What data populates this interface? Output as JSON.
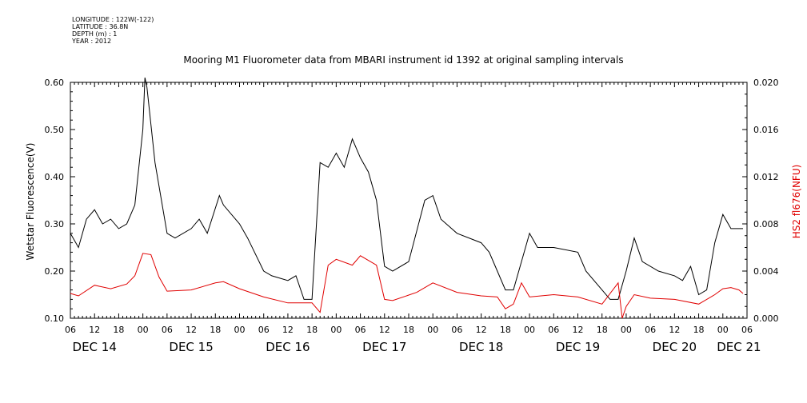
{
  "meta": {
    "lines": [
      "LONGITUDE : 122W(-122)",
      "LATITUDE : 36.8N",
      "DEPTH (m) : 1",
      "YEAR : 2012"
    ]
  },
  "colors": {
    "left_series": "#000000",
    "right_series": "#e00000",
    "right_axis_label": "#e00000"
  },
  "chart_data": {
    "type": "line",
    "title": "Mooring M1 Fluorometer data from MBARI instrument id 1392 at original sampling intervals",
    "ylabel_left": "Wetstar Fluorescence(V)",
    "ylabel_right": "HS2 fl676(NFU)",
    "x_range": [
      "2012-12-14T06:00",
      "2012-12-21T06:00"
    ],
    "ylim_left": [
      0.1,
      0.6
    ],
    "yticks_left": [
      "0.10",
      "0.20",
      "0.30",
      "0.40",
      "0.50",
      "0.60"
    ],
    "ylim_right": [
      0.0,
      0.02
    ],
    "yticks_right": [
      "0.000",
      "0.004",
      "0.008",
      "0.012",
      "0.016",
      "0.020"
    ],
    "x_hour_ticks": [
      "06",
      "12",
      "18",
      "00",
      "06",
      "12",
      "18",
      "00",
      "06",
      "12",
      "18",
      "00",
      "06",
      "12",
      "18",
      "00",
      "06",
      "12",
      "18",
      "00",
      "06",
      "12",
      "18",
      "00",
      "06",
      "12",
      "18",
      "00",
      "06"
    ],
    "x_day_labels": [
      "DEC 14",
      "DEC 15",
      "DEC 16",
      "DEC 17",
      "DEC 18",
      "DEC 19",
      "DEC 20",
      "DEC 21"
    ],
    "series": [
      {
        "name": "Wetstar Fluorescence(V)",
        "axis": "left",
        "points": [
          [
            "2012-12-14T06:00",
            0.28
          ],
          [
            "2012-12-14T08:00",
            0.25
          ],
          [
            "2012-12-14T10:00",
            0.31
          ],
          [
            "2012-12-14T12:00",
            0.33
          ],
          [
            "2012-12-14T14:00",
            0.3
          ],
          [
            "2012-12-14T16:00",
            0.31
          ],
          [
            "2012-12-14T18:00",
            0.29
          ],
          [
            "2012-12-14T20:00",
            0.3
          ],
          [
            "2012-12-14T22:00",
            0.34
          ],
          [
            "2012-12-15T00:00",
            0.5
          ],
          [
            "2012-12-15T00:30",
            0.61
          ],
          [
            "2012-12-15T01:00",
            0.59
          ],
          [
            "2012-12-15T03:00",
            0.43
          ],
          [
            "2012-12-15T06:00",
            0.28
          ],
          [
            "2012-12-15T08:00",
            0.27
          ],
          [
            "2012-12-15T12:00",
            0.29
          ],
          [
            "2012-12-15T14:00",
            0.31
          ],
          [
            "2012-12-15T16:00",
            0.28
          ],
          [
            "2012-12-15T19:00",
            0.36
          ],
          [
            "2012-12-15T20:00",
            0.34
          ],
          [
            "2012-12-16T00:00",
            0.3
          ],
          [
            "2012-12-16T02:00",
            0.27
          ],
          [
            "2012-12-16T06:00",
            0.2
          ],
          [
            "2012-12-16T08:00",
            0.19
          ],
          [
            "2012-12-16T12:00",
            0.18
          ],
          [
            "2012-12-16T14:00",
            0.19
          ],
          [
            "2012-12-16T16:00",
            0.14
          ],
          [
            "2012-12-16T18:00",
            0.14
          ],
          [
            "2012-12-16T20:00",
            0.43
          ],
          [
            "2012-12-16T22:00",
            0.42
          ],
          [
            "2012-12-17T00:00",
            0.45
          ],
          [
            "2012-12-17T02:00",
            0.42
          ],
          [
            "2012-12-17T04:00",
            0.48
          ],
          [
            "2012-12-17T06:00",
            0.44
          ],
          [
            "2012-12-17T08:00",
            0.41
          ],
          [
            "2012-12-17T10:00",
            0.35
          ],
          [
            "2012-12-17T12:00",
            0.21
          ],
          [
            "2012-12-17T14:00",
            0.2
          ],
          [
            "2012-12-17T18:00",
            0.22
          ],
          [
            "2012-12-17T22:00",
            0.35
          ],
          [
            "2012-12-18T00:00",
            0.36
          ],
          [
            "2012-12-18T02:00",
            0.31
          ],
          [
            "2012-12-18T06:00",
            0.28
          ],
          [
            "2012-12-18T12:00",
            0.26
          ],
          [
            "2012-12-18T14:00",
            0.24
          ],
          [
            "2012-12-18T16:00",
            0.2
          ],
          [
            "2012-12-18T18:00",
            0.16
          ],
          [
            "2012-12-18T20:00",
            0.16
          ],
          [
            "2012-12-19T00:00",
            0.28
          ],
          [
            "2012-12-19T02:00",
            0.25
          ],
          [
            "2012-12-19T06:00",
            0.25
          ],
          [
            "2012-12-19T12:00",
            0.24
          ],
          [
            "2012-12-19T14:00",
            0.2
          ],
          [
            "2012-12-19T18:00",
            0.16
          ],
          [
            "2012-12-19T20:00",
            0.14
          ],
          [
            "2012-12-19T22:00",
            0.14
          ],
          [
            "2012-12-20T00:00",
            0.2
          ],
          [
            "2012-12-20T02:00",
            0.27
          ],
          [
            "2012-12-20T04:00",
            0.22
          ],
          [
            "2012-12-20T08:00",
            0.2
          ],
          [
            "2012-12-20T12:00",
            0.19
          ],
          [
            "2012-12-20T14:00",
            0.18
          ],
          [
            "2012-12-20T16:00",
            0.21
          ],
          [
            "2012-12-20T18:00",
            0.15
          ],
          [
            "2012-12-20T20:00",
            0.16
          ],
          [
            "2012-12-20T22:00",
            0.26
          ],
          [
            "2012-12-21T00:00",
            0.32
          ],
          [
            "2012-12-21T02:00",
            0.29
          ],
          [
            "2012-12-21T04:00",
            0.29
          ],
          [
            "2012-12-21T05:00",
            0.29
          ]
        ]
      },
      {
        "name": "HS2 fl676(NFU)",
        "axis": "right",
        "points": [
          [
            "2012-12-14T06:00",
            0.0021
          ],
          [
            "2012-12-14T08:00",
            0.0019
          ],
          [
            "2012-12-14T12:00",
            0.0028
          ],
          [
            "2012-12-14T16:00",
            0.0025
          ],
          [
            "2012-12-14T20:00",
            0.0029
          ],
          [
            "2012-12-14T22:00",
            0.0036
          ],
          [
            "2012-12-15T00:00",
            0.0055
          ],
          [
            "2012-12-15T02:00",
            0.0054
          ],
          [
            "2012-12-15T04:00",
            0.0035
          ],
          [
            "2012-12-15T06:00",
            0.0023
          ],
          [
            "2012-12-15T12:00",
            0.0024
          ],
          [
            "2012-12-15T18:00",
            0.003
          ],
          [
            "2012-12-15T20:00",
            0.0031
          ],
          [
            "2012-12-16T00:00",
            0.0025
          ],
          [
            "2012-12-16T06:00",
            0.0018
          ],
          [
            "2012-12-16T12:00",
            0.0013
          ],
          [
            "2012-12-16T18:00",
            0.0013
          ],
          [
            "2012-12-16T20:00",
            0.0005
          ],
          [
            "2012-12-16T22:00",
            0.0045
          ],
          [
            "2012-12-17T00:00",
            0.005
          ],
          [
            "2012-12-17T04:00",
            0.0045
          ],
          [
            "2012-12-17T06:00",
            0.0053
          ],
          [
            "2012-12-17T10:00",
            0.0045
          ],
          [
            "2012-12-17T12:00",
            0.0016
          ],
          [
            "2012-12-17T14:00",
            0.0015
          ],
          [
            "2012-12-17T20:00",
            0.0022
          ],
          [
            "2012-12-18T00:00",
            0.003
          ],
          [
            "2012-12-18T06:00",
            0.0022
          ],
          [
            "2012-12-18T12:00",
            0.0019
          ],
          [
            "2012-12-18T16:00",
            0.0018
          ],
          [
            "2012-12-18T18:00",
            0.0008
          ],
          [
            "2012-12-18T20:00",
            0.0012
          ],
          [
            "2012-12-18T22:00",
            0.003
          ],
          [
            "2012-12-19T00:00",
            0.0018
          ],
          [
            "2012-12-19T06:00",
            0.002
          ],
          [
            "2012-12-19T12:00",
            0.0018
          ],
          [
            "2012-12-19T18:00",
            0.0012
          ],
          [
            "2012-12-19T22:00",
            0.003
          ],
          [
            "2012-12-19T23:00",
            0.0
          ],
          [
            "2012-12-20T00:00",
            0.001
          ],
          [
            "2012-12-20T02:00",
            0.002
          ],
          [
            "2012-12-20T06:00",
            0.0017
          ],
          [
            "2012-12-20T12:00",
            0.0016
          ],
          [
            "2012-12-20T18:00",
            0.0012
          ],
          [
            "2012-12-20T22:00",
            0.002
          ],
          [
            "2012-12-21T00:00",
            0.0025
          ],
          [
            "2012-12-21T02:00",
            0.0026
          ],
          [
            "2012-12-21T04:00",
            0.0024
          ],
          [
            "2012-12-21T05:00",
            0.0021
          ]
        ]
      }
    ]
  }
}
